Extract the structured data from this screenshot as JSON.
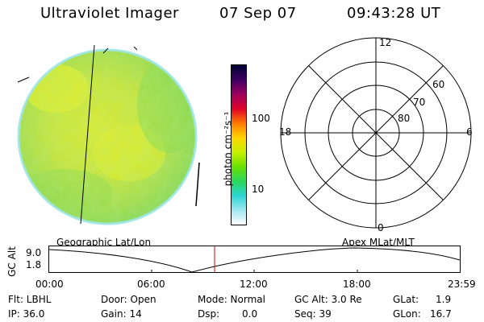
{
  "header": {
    "title": "Ultraviolet Imager",
    "date": "07 Sep 07",
    "time": "09:43:28 UT"
  },
  "labels": {
    "left_panel": "Geographic Lat/Lon",
    "right_panel": "Apex MLat/MLT"
  },
  "colorbar": {
    "label": "photon cm⁻²s⁻¹",
    "tick_100": "100",
    "tick_10": "10",
    "colors": [
      "#000033",
      "#3d0060",
      "#9c0060",
      "#e0002a",
      "#ff7a00",
      "#ffd400",
      "#c8f000",
      "#6be000",
      "#29d85a",
      "#2ad4d2",
      "#9ee7f0",
      "#ffffff"
    ]
  },
  "polar": {
    "mlt_12": "12",
    "mlt_18": "18",
    "mlt_6": "6",
    "mlt_0": "0",
    "lat_60": "60",
    "lat_70": "70",
    "lat_80": "80"
  },
  "timeline": {
    "ylabel": "GC Alt",
    "y_top": "9.0",
    "y_bottom": "1.8",
    "ticks": [
      "00:00",
      "06:00",
      "12:00",
      "18:00",
      "23:59"
    ],
    "marker_color": "#e00000"
  },
  "footer": {
    "flt": "Flt: LBHL",
    "door": "Door: Open",
    "mode": "Mode: Normal",
    "gc_alt": "GC Alt: 3.0 Re",
    "glat_label": "GLat:",
    "glat_value": "1.9",
    "ip": "IP: 36.0",
    "gain": "Gain: 14",
    "dsp_label": "Dsp:",
    "dsp_value": "0.0",
    "seq": "Seq: 39",
    "glon_label": "GLon:",
    "glon_value": "16.7"
  }
}
